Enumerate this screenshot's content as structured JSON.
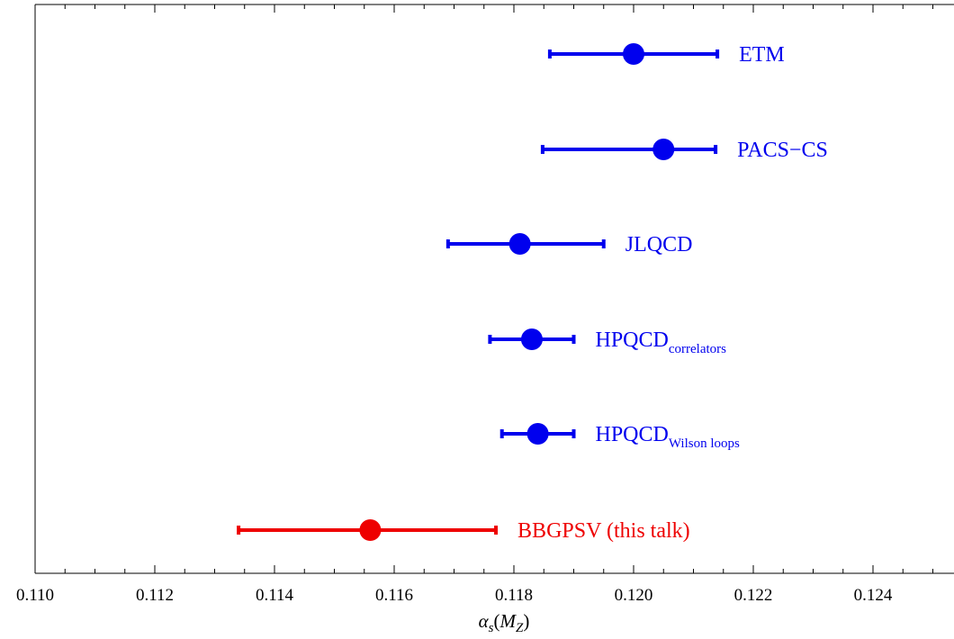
{
  "chart_data": {
    "type": "scatter",
    "title": "",
    "xlabel": {
      "symbol": "α",
      "symbol_sub": "s",
      "open": "(",
      "arg": "M",
      "arg_sub": "Z",
      "close": ")"
    },
    "ylabel": "",
    "xlim": [
      0.11,
      0.125
    ],
    "xticks": [
      "0.110",
      "0.112",
      "0.114",
      "0.116",
      "0.118",
      "0.120",
      "0.122",
      "0.124"
    ],
    "points": [
      {
        "label": "ETM",
        "label_sub": "",
        "value": 0.12,
        "err_low": 0.1186,
        "err_high": 0.1214,
        "color": "#0000ee"
      },
      {
        "label": "PACS−CS",
        "label_sub": "",
        "value": 0.1205,
        "err_low": 0.11848,
        "err_high": 0.12137,
        "color": "#0000ee"
      },
      {
        "label": "JLQCD",
        "label_sub": "",
        "value": 0.1181,
        "err_low": 0.1169,
        "err_high": 0.1195,
        "color": "#0000ee"
      },
      {
        "label": "HPQCD",
        "label_sub": "correlators",
        "value": 0.1183,
        "err_low": 0.1176,
        "err_high": 0.119,
        "color": "#0000ee"
      },
      {
        "label": "HPQCD",
        "label_sub": "Wilson loops",
        "value": 0.1184,
        "err_low": 0.1178,
        "err_high": 0.119,
        "color": "#0000ee"
      },
      {
        "label": "BBGPSV (this talk)",
        "label_sub": "",
        "value": 0.1156,
        "err_low": 0.1134,
        "err_high": 0.1177,
        "color": "#ee0000"
      }
    ]
  }
}
